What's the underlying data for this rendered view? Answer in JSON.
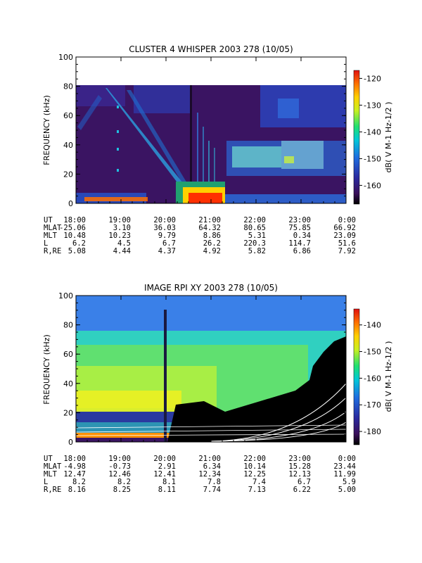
{
  "chart_data": [
    {
      "type": "heatmap",
      "title": "CLUSTER 4 WHISPER 2003 278 (10/05)",
      "ylabel": "FREQUENCY (kHz)",
      "ylim": [
        0,
        100
      ],
      "yticks": [
        0,
        20,
        40,
        60,
        80,
        100
      ],
      "data_top_khz": 80,
      "xticks": [
        "18:00",
        "19:00",
        "20:00",
        "21:00",
        "22:00",
        "23:00",
        "0:00"
      ],
      "colorbar": {
        "label": "dB( V M-1 Hz-1/2 )",
        "range": [
          -167,
          -117
        ],
        "ticks": [
          -120,
          -130,
          -140,
          -150,
          -160
        ]
      },
      "ephemeris": [
        {
          "label": "UT",
          "values": [
            "18:00",
            "19:00",
            "20:00",
            "21:00",
            "22:00",
            "23:00",
            "0:00"
          ]
        },
        {
          "label": "MLAT",
          "values": [
            "-25.06",
            "3.10",
            "36.03",
            "64.32",
            "80.65",
            "75.85",
            "66.92"
          ]
        },
        {
          "label": "MLT",
          "values": [
            "10.48",
            "10.23",
            "9.79",
            "8.86",
            "5.31",
            "0.34",
            "23.09"
          ]
        },
        {
          "label": "L",
          "values": [
            "6.2",
            "4.5",
            "6.7",
            "26.2",
            "220.3",
            "114.7",
            "51.6"
          ]
        },
        {
          "label": "R,RE",
          "values": [
            "5.08",
            "4.44",
            "4.37",
            "4.92",
            "5.82",
            "6.86",
            "7.92"
          ]
        }
      ]
    },
    {
      "type": "heatmap",
      "title": "IMAGE RPI XY 2003 278 (10/05)",
      "ylabel": "FREQUENCY (kHz)",
      "ylim": [
        0,
        100
      ],
      "yticks": [
        0,
        20,
        40,
        60,
        80,
        100
      ],
      "xticks": [
        "18:00",
        "19:00",
        "20:00",
        "21:00",
        "22:00",
        "23:00",
        "0:00"
      ],
      "colorbar": {
        "label": "dB( V M-1 Hz-1/2 )",
        "range": [
          -185,
          -134
        ],
        "ticks": [
          -140,
          -150,
          -160,
          -170,
          -180
        ]
      },
      "ephemeris": [
        {
          "label": "UT",
          "values": [
            "18:00",
            "19:00",
            "20:00",
            "21:00",
            "22:00",
            "23:00",
            "0:00"
          ]
        },
        {
          "label": "MLAT",
          "values": [
            "-4.98",
            "-0.73",
            "2.91",
            "6.34",
            "10.14",
            "15.28",
            "23.44"
          ]
        },
        {
          "label": "MLT",
          "values": [
            "12.47",
            "12.46",
            "12.41",
            "12.34",
            "12.25",
            "12.13",
            "11.99"
          ]
        },
        {
          "label": "L",
          "values": [
            "8.2",
            "8.2",
            "8.1",
            "7.8",
            "7.4",
            "6.7",
            "5.9"
          ]
        },
        {
          "label": "R,RE",
          "values": [
            "8.16",
            "8.25",
            "8.11",
            "7.74",
            "7.13",
            "6.22",
            "5.00"
          ]
        }
      ]
    }
  ]
}
